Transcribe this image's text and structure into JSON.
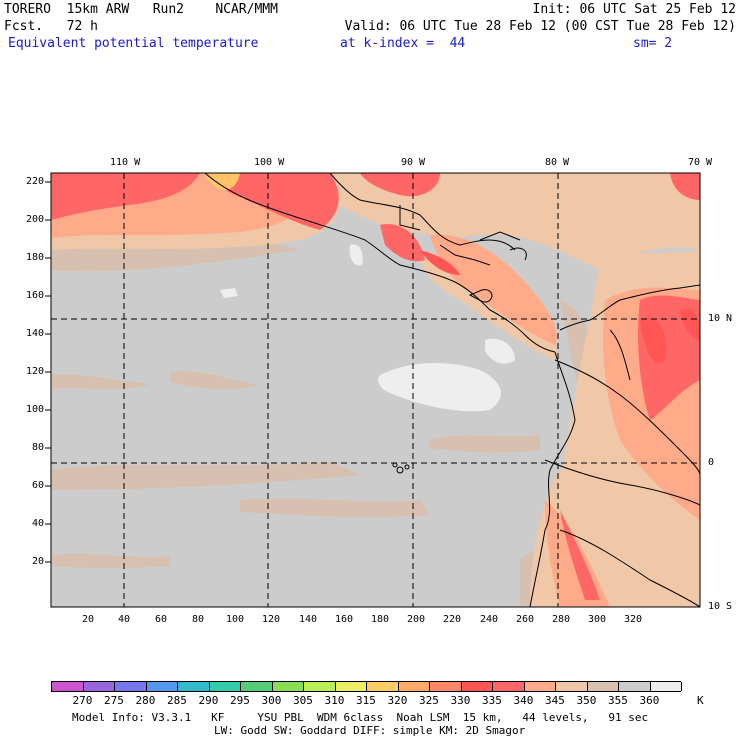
{
  "header": {
    "model": "TORERO  15km ARW   Run2    NCAR/MMM",
    "init": "Init: 06 UTC Sat 25 Feb 12",
    "fcst": "Fcst.   72 h",
    "valid": "Valid: 06 UTC Tue 28 Feb 12 (00 CST Tue 28 Feb 12)",
    "field": "Equivalent potential temperature",
    "level": "at k-index =  44",
    "smooth": "sm= 2"
  },
  "map": {
    "lon_labels": [
      "110 W",
      "100 W",
      "90 W",
      "80 W",
      "70 W"
    ],
    "lat_labels": [
      "10 N",
      "0",
      "10 S"
    ],
    "y_ticks": [
      "220",
      "200",
      "180",
      "160",
      "140",
      "120",
      "100",
      "80",
      "60",
      "40",
      "20"
    ],
    "x_ticks": [
      "20",
      "40",
      "60",
      "80",
      "100",
      "120",
      "140",
      "160",
      "180",
      "200",
      "220",
      "240",
      "260",
      "280",
      "300",
      "320"
    ]
  },
  "colorbar": {
    "labels": [
      "270",
      "275",
      "280",
      "285",
      "290",
      "295",
      "300",
      "305",
      "310",
      "315",
      "320",
      "325",
      "330",
      "335",
      "340",
      "345",
      "350",
      "355",
      "360"
    ],
    "unit": "K",
    "colors": [
      "#cc55cc",
      "#9966dd",
      "#7777ee",
      "#5599ee",
      "#33bbcc",
      "#33ccaa",
      "#55cc77",
      "#88dd55",
      "#bbee55",
      "#eeee66",
      "#ffcc66",
      "#ffaa66",
      "#ff8866",
      "#ff5555",
      "#ff6666",
      "#ffaa88",
      "#f0c8a8",
      "#d8c0b0",
      "#cccccc",
      "#eeeeee"
    ]
  },
  "footer": {
    "line1": "Model Info: V3.3.1   KF     YSU PBL  WDM 6class  Noah LSM  15 km,   44 levels,   91 sec",
    "line2": "LW: Godd SW: Goddard DIFF: simple KM: 2D Smagor"
  }
}
